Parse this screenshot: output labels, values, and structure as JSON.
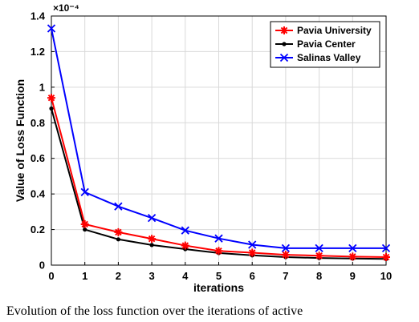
{
  "caption": "Evolution of the loss function over the iterations of active",
  "chart_data": {
    "type": "line",
    "title": "",
    "xlabel": "iterations",
    "ylabel": "Value of Loss Function",
    "y_exponent_label": "×10⁻⁴",
    "x": [
      0,
      1,
      2,
      3,
      4,
      5,
      6,
      7,
      8,
      9,
      10
    ],
    "xlim": [
      0,
      10
    ],
    "ylim": [
      0,
      1.4
    ],
    "xticks": [
      "0",
      "1",
      "2",
      "3",
      "4",
      "5",
      "6",
      "7",
      "8",
      "9",
      "10"
    ],
    "yticks": [
      "0",
      "0.2",
      "0.4",
      "0.6",
      "0.8",
      "1",
      "1.2",
      "1.4"
    ],
    "grid": true,
    "legend_position": "top-right",
    "series": [
      {
        "name": "Pavia University",
        "color": "#ff0000",
        "marker": "asterisk",
        "values": [
          0.94,
          0.23,
          0.185,
          0.148,
          0.11,
          0.08,
          0.07,
          0.058,
          0.053,
          0.048,
          0.045
        ]
      },
      {
        "name": "Pavia Center",
        "color": "#000000",
        "marker": "dot",
        "values": [
          0.88,
          0.2,
          0.145,
          0.113,
          0.09,
          0.068,
          0.055,
          0.045,
          0.04,
          0.037,
          0.035
        ]
      },
      {
        "name": "Salinas Valley",
        "color": "#0000ff",
        "marker": "x",
        "values": [
          1.33,
          0.41,
          0.33,
          0.265,
          0.195,
          0.15,
          0.115,
          0.095,
          0.095,
          0.095,
          0.095
        ]
      }
    ]
  }
}
